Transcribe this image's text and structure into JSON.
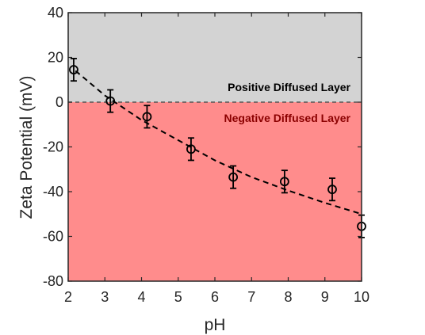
{
  "chart_data": {
    "type": "scatter",
    "xlabel": "pH",
    "ylabel": "Zeta Potential (mV)",
    "xlim": [
      2,
      10
    ],
    "ylim": [
      -80,
      40
    ],
    "xticks": [
      "2",
      "3",
      "4",
      "5",
      "6",
      "7",
      "8",
      "9",
      "10"
    ],
    "yticks": [
      "-80",
      "-60",
      "-40",
      "-20",
      "0",
      "20",
      "40"
    ],
    "grid": false,
    "regions": [
      {
        "label": "Positive Diffused Layer",
        "y_range": [
          0,
          40
        ],
        "color": "#d3d3d3",
        "label_color": "#000000"
      },
      {
        "label": "Negative Diffused Layer",
        "y_range": [
          -80,
          0
        ],
        "color": "#ff8c8c",
        "label_color": "#8b0000"
      }
    ],
    "series": [
      {
        "marker": "open-circle",
        "points": [
          {
            "x": 2.15,
            "y": 14.5,
            "err": 5
          },
          {
            "x": 3.15,
            "y": 0.5,
            "err": 5
          },
          {
            "x": 4.15,
            "y": -6.5,
            "err": 5
          },
          {
            "x": 5.35,
            "y": -21,
            "err": 5
          },
          {
            "x": 6.5,
            "y": -33.5,
            "err": 5
          },
          {
            "x": 7.9,
            "y": -35.5,
            "err": 5
          },
          {
            "x": 9.2,
            "y": -39,
            "err": 5
          },
          {
            "x": 10.0,
            "y": -55.5,
            "err": 5
          }
        ]
      }
    ],
    "trend_line": {
      "style": "dashed",
      "points": [
        {
          "x": 2.2,
          "y": 14
        },
        {
          "x": 3.0,
          "y": 3
        },
        {
          "x": 4.0,
          "y": -8
        },
        {
          "x": 5.0,
          "y": -17
        },
        {
          "x": 6.0,
          "y": -26
        },
        {
          "x": 7.0,
          "y": -33.5
        },
        {
          "x": 8.0,
          "y": -39.5
        },
        {
          "x": 9.0,
          "y": -45
        },
        {
          "x": 10.0,
          "y": -50
        }
      ]
    },
    "zero_line": {
      "y": 0,
      "style": "dashed"
    }
  }
}
